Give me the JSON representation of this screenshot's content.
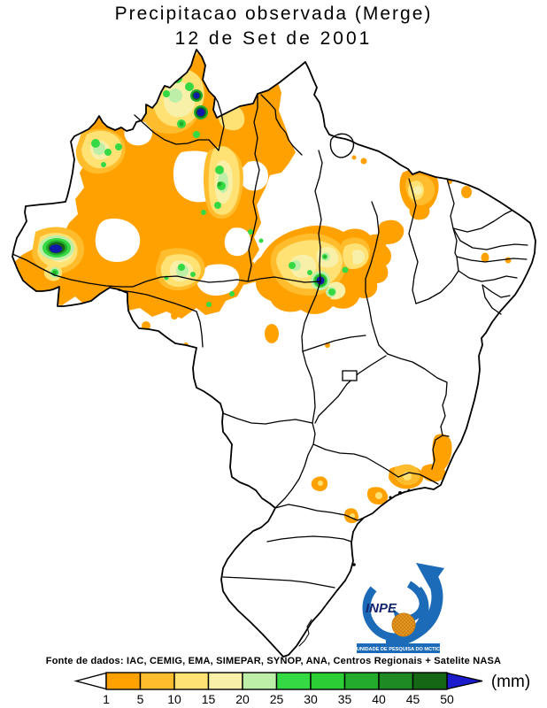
{
  "title": {
    "line1": "Precipitacao observada (Merge)",
    "line2": "12 de Set de 2001"
  },
  "footer": {
    "source_text": "Fonte de dados: IAC, CEMIG, EMA, SIMEPAR, SYNOP, ANA, Centros Regionais + Satelite NASA"
  },
  "colorbar": {
    "unit_label": "(mm)",
    "tick_labels": [
      "1",
      "5",
      "10",
      "15",
      "20",
      "25",
      "30",
      "35",
      "40",
      "45",
      "50"
    ],
    "bins": [
      {
        "range": "1-5",
        "color": "#FFA101"
      },
      {
        "range": "5-10",
        "color": "#FFBD2E"
      },
      {
        "range": "10-15",
        "color": "#FFE273"
      },
      {
        "range": "15-20",
        "color": "#F8F0A8"
      },
      {
        "range": "20-25",
        "color": "#BEEFA8"
      },
      {
        "range": "25-30",
        "color": "#35D943"
      },
      {
        "range": "30-35",
        "color": "#2BCE35"
      },
      {
        "range": "35-40",
        "color": "#23AC2C"
      },
      {
        "range": "40-45",
        "color": "#1D8A24"
      },
      {
        "range": "45-50",
        "color": "#156615"
      },
      {
        "range": ">50",
        "color": "#1C1CCD"
      }
    ],
    "underflow_color": "#FFFFFF",
    "overflow_color": "#1C1CCD",
    "extreme_spot_color": "#1119A9"
  },
  "map": {
    "region": "Brazil with state boundaries",
    "line_color": "#000000",
    "background": "#FFFFFF"
  },
  "logo": {
    "org_text": "INPE",
    "banner_text": "UNIDADE DE PESQUISA DO MCTIC",
    "blue": "#1C6BB8",
    "navy": "#13246B",
    "orange": "#E8951E"
  }
}
